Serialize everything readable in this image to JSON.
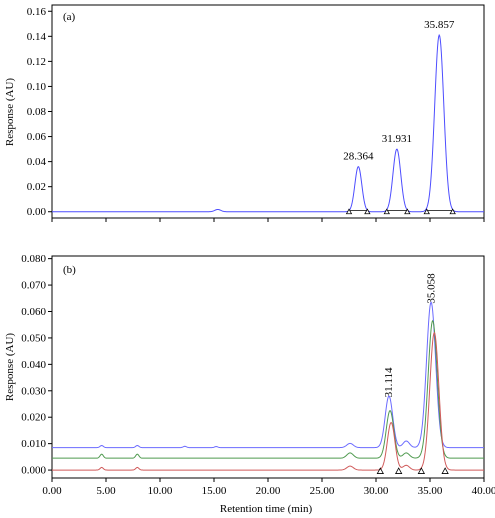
{
  "chart_data": [
    {
      "type": "line",
      "panel_label": "(a)",
      "ylabel": "Response (AU)",
      "xlabel": "",
      "xlim": [
        0,
        40
      ],
      "ylim": [
        -0.005,
        0.165
      ],
      "yticks": [
        "0.00",
        "0.02",
        "0.04",
        "0.06",
        "0.08",
        "0.10",
        "0.12",
        "0.14",
        "0.16"
      ],
      "ytick_values": [
        0.0,
        0.02,
        0.04,
        0.06,
        0.08,
        0.1,
        0.12,
        0.14,
        0.16
      ],
      "grid": false,
      "series": [
        {
          "color": "#4d4dff",
          "baseline": 0.0,
          "peaks": [
            {
              "rt": 15.35,
              "height": 0.0018,
              "width": 0.28
            },
            {
              "rt": 28.364,
              "height": 0.036,
              "width": 0.32
            },
            {
              "rt": 31.931,
              "height": 0.05,
              "width": 0.36
            },
            {
              "rt": 35.857,
              "height": 0.141,
              "width": 0.42
            }
          ]
        }
      ],
      "peak_labels": [
        {
          "text": "28.364",
          "x": 28.364,
          "y": 0.036
        },
        {
          "text": "31.931",
          "x": 31.931,
          "y": 0.05
        },
        {
          "text": "35.857",
          "x": 35.857,
          "y": 0.141
        }
      ],
      "integration_baselines": [
        {
          "start": 27.5,
          "end": 29.2
        },
        {
          "start": 31.0,
          "end": 32.9
        },
        {
          "start": 34.7,
          "end": 37.1
        }
      ]
    },
    {
      "type": "line",
      "panel_label": "(b)",
      "ylabel": "Response (AU)",
      "xlabel": "Retention time (min)",
      "xlim": [
        0,
        40
      ],
      "ylim": [
        -0.003,
        0.081
      ],
      "yticks": [
        "0.000",
        "0.010",
        "0.020",
        "0.030",
        "0.040",
        "0.050",
        "0.060",
        "0.070",
        "0.080"
      ],
      "ytick_values": [
        0.0,
        0.01,
        0.02,
        0.03,
        0.04,
        0.05,
        0.06,
        0.07,
        0.08
      ],
      "xticks": [
        "0.00",
        "5.00",
        "10.00",
        "15.00",
        "20.00",
        "25.00",
        "30.00",
        "35.00",
        "40.00"
      ],
      "xtick_values": [
        0,
        5,
        10,
        15,
        20,
        25,
        30,
        35,
        40
      ],
      "grid": false,
      "series": [
        {
          "color": "#6b6bff",
          "baseline": 0.0085,
          "peaks": [
            {
              "rt": 4.6,
              "height": 0.0008,
              "width": 0.15
            },
            {
              "rt": 7.9,
              "height": 0.0008,
              "width": 0.15
            },
            {
              "rt": 12.3,
              "height": 0.0005,
              "width": 0.15
            },
            {
              "rt": 15.2,
              "height": 0.0004,
              "width": 0.15
            },
            {
              "rt": 27.6,
              "height": 0.0016,
              "width": 0.3
            },
            {
              "rt": 31.2,
              "height": 0.0195,
              "width": 0.35
            },
            {
              "rt": 32.8,
              "height": 0.0025,
              "width": 0.3
            },
            {
              "rt": 35.1,
              "height": 0.055,
              "width": 0.42
            }
          ]
        },
        {
          "color": "#4f9a4f",
          "baseline": 0.0045,
          "peaks": [
            {
              "rt": 4.6,
              "height": 0.0015,
              "width": 0.15
            },
            {
              "rt": 7.9,
              "height": 0.0015,
              "width": 0.15
            },
            {
              "rt": 27.6,
              "height": 0.002,
              "width": 0.3
            },
            {
              "rt": 31.3,
              "height": 0.018,
              "width": 0.35
            },
            {
              "rt": 32.8,
              "height": 0.002,
              "width": 0.3
            },
            {
              "rt": 35.25,
              "height": 0.052,
              "width": 0.42
            }
          ]
        },
        {
          "color": "#d05a5a",
          "baseline": 0.0,
          "peaks": [
            {
              "rt": 4.6,
              "height": 0.001,
              "width": 0.15
            },
            {
              "rt": 7.9,
              "height": 0.001,
              "width": 0.15
            },
            {
              "rt": 27.6,
              "height": 0.0015,
              "width": 0.3
            },
            {
              "rt": 31.4,
              "height": 0.018,
              "width": 0.35
            },
            {
              "rt": 32.8,
              "height": 0.0018,
              "width": 0.3
            },
            {
              "rt": 35.4,
              "height": 0.052,
              "width": 0.42
            }
          ]
        }
      ],
      "peak_labels": [
        {
          "text": "31.114",
          "x": 31.114,
          "y": 0.0275,
          "rotated": true
        },
        {
          "text": "35.058",
          "x": 35.058,
          "y": 0.063,
          "rotated": true
        }
      ],
      "integration_markers": [
        30.4,
        32.1,
        34.2,
        36.4
      ]
    }
  ]
}
